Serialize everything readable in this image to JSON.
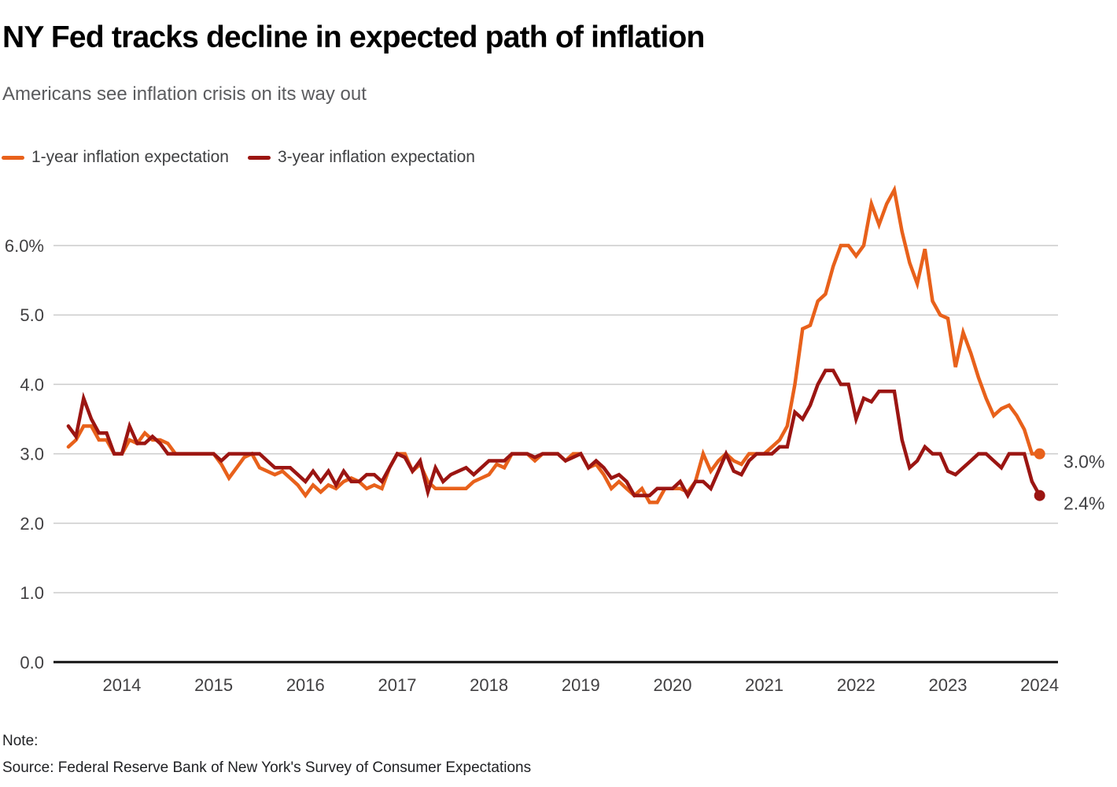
{
  "header": {
    "title": "NY Fed tracks decline in expected path of inflation",
    "subtitle": "Americans see inflation crisis on its way out"
  },
  "legend": {
    "items": [
      {
        "label": "1-year inflation expectation",
        "color": "#E8611B"
      },
      {
        "label": "3-year inflation expectation",
        "color": "#9B1512"
      }
    ]
  },
  "chart_data": {
    "type": "line",
    "title": "NY Fed tracks decline in expected path of inflation",
    "subtitle": "Americans see inflation crisis on its way out",
    "x_start_month": "2013-06",
    "x_end_month": "2024-01",
    "x_frequency": "monthly",
    "x_tick_labels": [
      "2014",
      "2015",
      "2016",
      "2017",
      "2018",
      "2019",
      "2020",
      "2021",
      "2022",
      "2023",
      "2024"
    ],
    "y_ticks": [
      {
        "value": 6,
        "label": "6.0%"
      },
      {
        "value": 5,
        "label": "5.0"
      },
      {
        "value": 4,
        "label": "4.0"
      },
      {
        "value": 3,
        "label": "3.0"
      },
      {
        "value": 2,
        "label": "2.0"
      },
      {
        "value": 1,
        "label": "1.0"
      },
      {
        "value": 0,
        "label": "0.0"
      }
    ],
    "ylim": [
      0,
      6.9
    ],
    "grid": "horizontal",
    "grid_color": "#CCCCCC",
    "axis_color": "#131313",
    "tick_label_color": "#414042",
    "legend_position": "top-left",
    "series": [
      {
        "name": "1-year inflation expectation",
        "color": "#E8611B",
        "end_label": "3.0%",
        "end_value": 3.0,
        "values": [
          3.1,
          3.2,
          3.4,
          3.4,
          3.2,
          3.2,
          3.0,
          3.0,
          3.2,
          3.15,
          3.3,
          3.2,
          3.2,
          3.15,
          3.0,
          3.0,
          3.0,
          3.0,
          3.0,
          3.0,
          2.85,
          2.65,
          2.8,
          2.95,
          3.0,
          2.8,
          2.75,
          2.7,
          2.75,
          2.65,
          2.55,
          2.4,
          2.55,
          2.45,
          2.55,
          2.5,
          2.6,
          2.65,
          2.6,
          2.5,
          2.55,
          2.5,
          2.8,
          3.0,
          3.0,
          2.75,
          2.85,
          2.6,
          2.5,
          2.5,
          2.5,
          2.5,
          2.5,
          2.6,
          2.65,
          2.7,
          2.85,
          2.8,
          3.0,
          3.0,
          3.0,
          2.9,
          3.0,
          3.0,
          3.0,
          2.9,
          3.0,
          3.0,
          2.8,
          2.85,
          2.7,
          2.5,
          2.6,
          2.5,
          2.4,
          2.5,
          2.3,
          2.3,
          2.5,
          2.5,
          2.5,
          2.45,
          2.6,
          3.0,
          2.75,
          2.9,
          3.0,
          2.9,
          2.85,
          3.0,
          3.0,
          3.0,
          3.1,
          3.2,
          3.4,
          4.0,
          4.8,
          4.85,
          5.2,
          5.3,
          5.7,
          6.0,
          6.0,
          5.85,
          6.0,
          6.6,
          6.3,
          6.6,
          6.8,
          6.2,
          5.75,
          5.45,
          5.95,
          5.2,
          5.0,
          4.95,
          4.25,
          4.75,
          4.45,
          4.1,
          3.8,
          3.55,
          3.65,
          3.7,
          3.55,
          3.35,
          3.0,
          3.0
        ]
      },
      {
        "name": "3-year inflation expectation",
        "color": "#9B1512",
        "end_label": "2.4%",
        "end_value": 2.4,
        "values": [
          3.4,
          3.25,
          3.8,
          3.5,
          3.3,
          3.3,
          3.0,
          3.0,
          3.4,
          3.15,
          3.15,
          3.25,
          3.15,
          3.0,
          3.0,
          3.0,
          3.0,
          3.0,
          3.0,
          3.0,
          2.9,
          3.0,
          3.0,
          3.0,
          3.0,
          3.0,
          2.9,
          2.8,
          2.8,
          2.8,
          2.7,
          2.6,
          2.75,
          2.6,
          2.75,
          2.55,
          2.75,
          2.6,
          2.6,
          2.7,
          2.7,
          2.6,
          2.8,
          3.0,
          2.95,
          2.75,
          2.9,
          2.45,
          2.8,
          2.6,
          2.7,
          2.75,
          2.8,
          2.7,
          2.8,
          2.9,
          2.9,
          2.9,
          3.0,
          3.0,
          3.0,
          2.95,
          3.0,
          3.0,
          3.0,
          2.9,
          2.95,
          3.0,
          2.8,
          2.9,
          2.8,
          2.65,
          2.7,
          2.6,
          2.4,
          2.4,
          2.4,
          2.5,
          2.5,
          2.5,
          2.6,
          2.4,
          2.6,
          2.6,
          2.5,
          2.75,
          3.0,
          2.75,
          2.7,
          2.9,
          3.0,
          3.0,
          3.0,
          3.1,
          3.1,
          3.6,
          3.5,
          3.7,
          4.0,
          4.2,
          4.2,
          4.0,
          4.0,
          3.5,
          3.8,
          3.75,
          3.9,
          3.9,
          3.9,
          3.2,
          2.8,
          2.9,
          3.1,
          3.0,
          3.0,
          2.75,
          2.7,
          2.8,
          2.9,
          3.0,
          3.0,
          2.9,
          2.8,
          3.0,
          3.0,
          3.0,
          2.6,
          2.4
        ]
      }
    ]
  },
  "footer": {
    "note": "Note:",
    "source": "Source: Federal Reserve Bank of New York's Survey of Consumer Expectations"
  }
}
